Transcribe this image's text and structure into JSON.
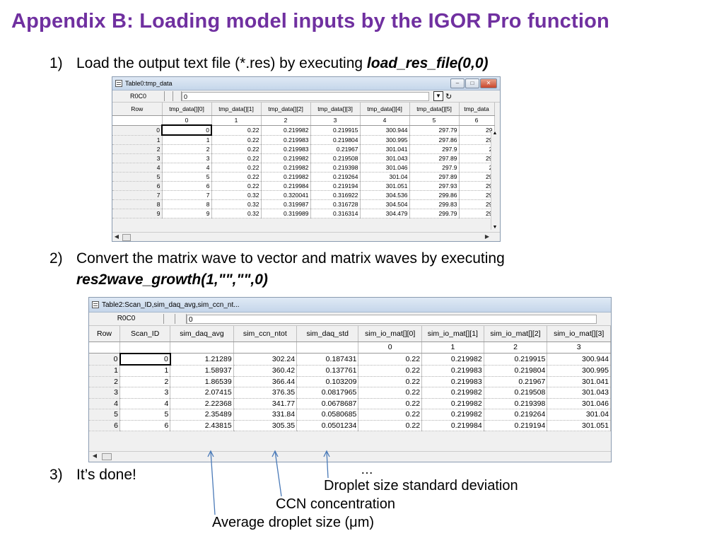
{
  "title": "Appendix B: Loading model inputs by the IGOR Pro function",
  "steps": [
    {
      "num": "1)",
      "text": "Load the output text file (*.res) by executing ",
      "cmd": "load_res_file(0,0)"
    },
    {
      "num": "2)",
      "text": "Convert the matrix wave to vector and matrix waves by executing",
      "cmd": "res2wave_growth(1,\"\",\"\",0)"
    },
    {
      "num": "3)",
      "text": "It’s done!"
    }
  ],
  "table1": {
    "window_title": "Table0:tmp_data",
    "cell_ref": "R0C0",
    "entry_value": "0",
    "headers": [
      "Row",
      "tmp_data[][0]",
      "tmp_data[][1]",
      "tmp_data[][2]",
      "tmp_data[][3]",
      "tmp_data[][4]",
      "tmp_data[][5]",
      "tmp_data"
    ],
    "index_row": [
      "",
      "0",
      "1",
      "2",
      "3",
      "4",
      "5",
      "6"
    ],
    "rows": [
      [
        "0",
        "0",
        "0.22",
        "0.219982",
        "0.219915",
        "300.944",
        "297.79",
        "29"
      ],
      [
        "1",
        "1",
        "0.22",
        "0.219983",
        "0.219804",
        "300.995",
        "297.86",
        "29"
      ],
      [
        "2",
        "2",
        "0.22",
        "0.219983",
        "0.21967",
        "301.041",
        "297.9",
        "2"
      ],
      [
        "3",
        "3",
        "0.22",
        "0.219982",
        "0.219508",
        "301.043",
        "297.89",
        "29"
      ],
      [
        "4",
        "4",
        "0.22",
        "0.219982",
        "0.219398",
        "301.046",
        "297.9",
        "2"
      ],
      [
        "5",
        "5",
        "0.22",
        "0.219982",
        "0.219264",
        "301.04",
        "297.89",
        "29"
      ],
      [
        "6",
        "6",
        "0.22",
        "0.219984",
        "0.219194",
        "301.051",
        "297.93",
        "29"
      ],
      [
        "7",
        "7",
        "0.32",
        "0.320041",
        "0.316922",
        "304.536",
        "299.86",
        "29"
      ],
      [
        "8",
        "8",
        "0.32",
        "0.319987",
        "0.316728",
        "304.504",
        "299.83",
        "29"
      ],
      [
        "9",
        "9",
        "0.32",
        "0.319989",
        "0.316314",
        "304.479",
        "299.79",
        "29"
      ]
    ]
  },
  "table2": {
    "window_title": "Table2:Scan_ID,sim_daq_avg,sim_ccn_nt...",
    "cell_ref": "R0C0",
    "entry_value": "0",
    "headers": [
      "Row",
      "Scan_ID",
      "sim_daq_avg",
      "sim_ccn_ntot",
      "sim_daq_std",
      "sim_io_mat[][0]",
      "sim_io_mat[][1]",
      "sim_io_mat[][2]",
      "sim_io_mat[][3]"
    ],
    "index_row": [
      "",
      "",
      "",
      "",
      "",
      "0",
      "1",
      "2",
      "3"
    ],
    "rows": [
      [
        "0",
        "0",
        "1.21289",
        "302.24",
        "0.187431",
        "0.22",
        "0.219982",
        "0.219915",
        "300.944"
      ],
      [
        "1",
        "1",
        "1.58937",
        "360.42",
        "0.137761",
        "0.22",
        "0.219983",
        "0.219804",
        "300.995"
      ],
      [
        "2",
        "2",
        "1.86539",
        "366.44",
        "0.103209",
        "0.22",
        "0.219983",
        "0.21967",
        "301.041"
      ],
      [
        "3",
        "3",
        "2.07415",
        "376.35",
        "0.0817965",
        "0.22",
        "0.219982",
        "0.219508",
        "301.043"
      ],
      [
        "4",
        "4",
        "2.22368",
        "341.77",
        "0.0678687",
        "0.22",
        "0.219982",
        "0.219398",
        "301.046"
      ],
      [
        "5",
        "5",
        "2.35489",
        "331.84",
        "0.0580685",
        "0.22",
        "0.219982",
        "0.219264",
        "301.04"
      ],
      [
        "6",
        "6",
        "2.43815",
        "305.35",
        "0.0501234",
        "0.22",
        "0.219984",
        "0.219194",
        "301.051"
      ]
    ]
  },
  "ellipsis": "…",
  "annotations": {
    "std": "Droplet size standard deviation",
    "ccn": "CCN concentration",
    "avg": "Average droplet size (μm)"
  },
  "colors": {
    "title": "#7030a0",
    "arrow": "#4a7ab8"
  }
}
